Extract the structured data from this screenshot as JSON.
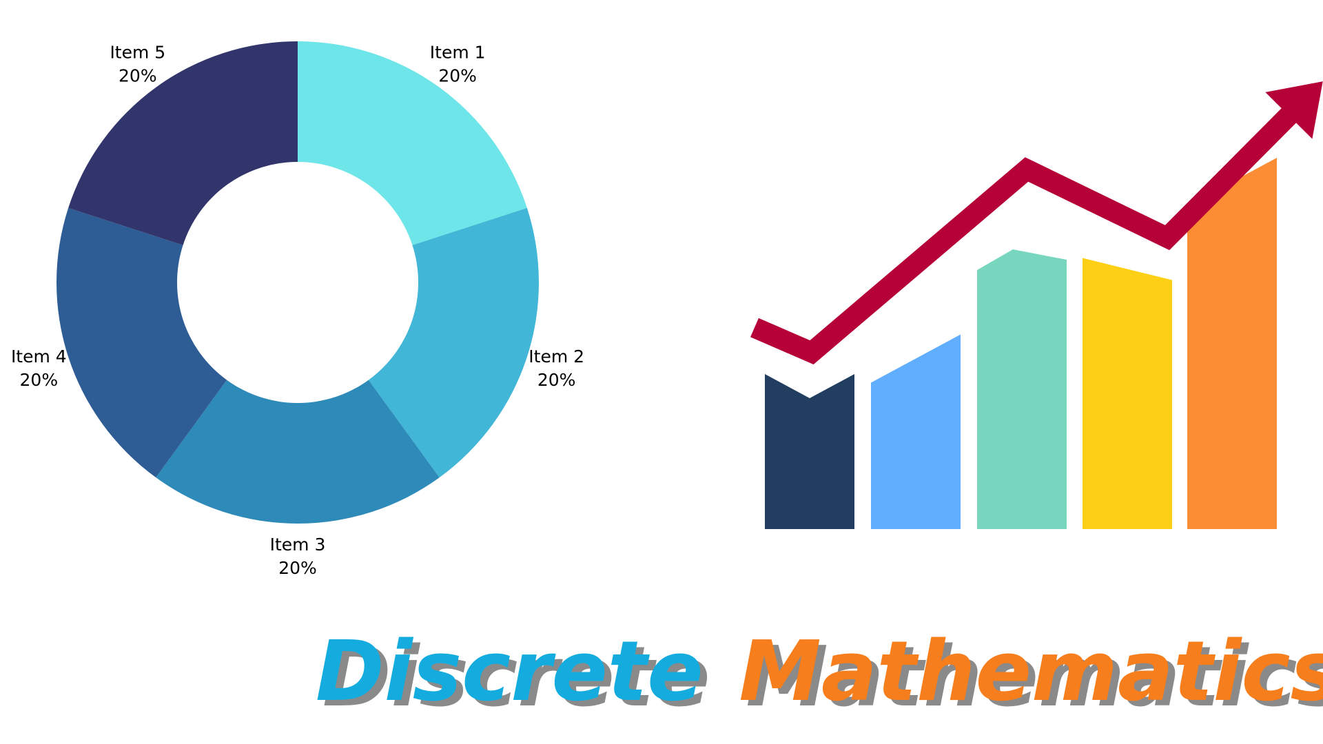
{
  "chart_data": [
    {
      "type": "pie",
      "variant": "donut",
      "categories": [
        "Item 1",
        "Item 2",
        "Item 3",
        "Item 4",
        "Item 5"
      ],
      "values": [
        20,
        20,
        20,
        20,
        20
      ],
      "value_labels": [
        "20%",
        "20%",
        "20%",
        "20%",
        "20%"
      ],
      "colors": [
        "#6ee5e8",
        "#42b6d6",
        "#2e8ab8",
        "#2e5d96",
        "#31356b"
      ],
      "start": "top, clockwise",
      "legend": "none; labels placed outside each slice"
    },
    {
      "type": "bar",
      "variant": "illustration with rising trend arrow",
      "values": [
        250,
        275,
        440,
        415,
        560
      ],
      "trend_line": [
        325,
        285,
        580,
        470,
        700
      ],
      "colors": [
        "#213d5f",
        "#60aefd",
        "#78d6be",
        "#fdd016",
        "#fd8d34"
      ],
      "arrow_color": "#b50038"
    }
  ],
  "title": {
    "word1": "Discrete",
    "word2": "Mathematics",
    "word1_color": "#14acde",
    "word2_color": "#f77e1c",
    "shadow_color": "#8a8a8a"
  }
}
